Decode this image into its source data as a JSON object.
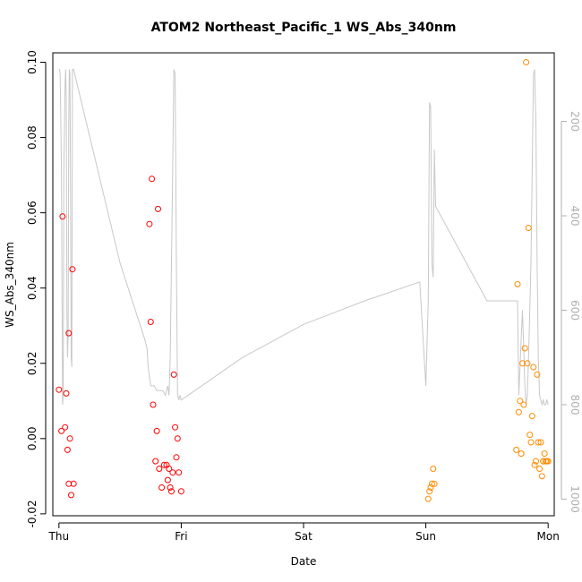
{
  "chart_data": {
    "type": "scatter",
    "title": "ATOM2 Northeast_Pacific_1 WS_Abs_340nm",
    "xlabel": "Date",
    "ylabel": "WS_Abs_340nm",
    "xlim": [
      -0.05,
      4.05
    ],
    "ylim": [
      -0.0205,
      0.1025
    ],
    "x_tick_labels": [
      {
        "x": 0,
        "label": "Thu"
      },
      {
        "x": 1,
        "label": "Fri"
      },
      {
        "x": 2,
        "label": "Sat"
      },
      {
        "x": 3,
        "label": "Sun"
      },
      {
        "x": 4,
        "label": "Mon"
      }
    ],
    "y_ticks": [
      -0.02,
      0.0,
      0.02,
      0.04,
      0.06,
      0.08,
      0.1
    ],
    "y_tick_labels": [
      "-0.02",
      "0.00",
      "0.02",
      "0.04",
      "0.06",
      "0.08",
      "0.10"
    ],
    "right_axis": {
      "ticks": [
        200,
        400,
        600,
        800,
        1000
      ],
      "tick_labels": [
        "200",
        "400",
        "600",
        "800",
        "1000"
      ],
      "lim": [
        55,
        1035
      ],
      "reversed": true,
      "color": "#b0b0b0"
    },
    "series": [
      {
        "name": "WS_Abs_340nm (Thu-Fri)",
        "color": "#ff0000",
        "x": [
          0.0,
          0.02,
          0.03,
          0.05,
          0.06,
          0.07,
          0.08,
          0.08,
          0.09,
          0.1,
          0.11,
          0.12,
          0.74,
          0.75,
          0.76,
          0.77,
          0.79,
          0.8,
          0.81,
          0.82,
          0.84,
          0.86,
          0.88,
          0.89,
          0.9,
          0.91,
          0.92,
          0.93,
          0.94,
          0.95,
          0.96,
          0.97,
          1.0,
          0.98
        ],
        "y": [
          0.013,
          0.002,
          0.059,
          0.003,
          0.012,
          -0.003,
          0.028,
          -0.012,
          0.0,
          -0.015,
          0.045,
          -0.012,
          0.057,
          0.031,
          0.069,
          0.009,
          -0.006,
          0.002,
          0.061,
          -0.008,
          -0.013,
          -0.007,
          -0.007,
          -0.011,
          -0.008,
          -0.013,
          -0.014,
          -0.009,
          0.017,
          0.003,
          -0.005,
          0.0,
          -0.014,
          -0.009
        ]
      },
      {
        "name": "WS_Abs_340nm (Sun-Mon)",
        "color": "#ff8c00",
        "x": [
          3.02,
          3.03,
          3.04,
          3.05,
          3.06,
          3.07,
          3.74,
          3.75,
          3.76,
          3.77,
          3.78,
          3.79,
          3.8,
          3.81,
          3.82,
          3.83,
          3.84,
          3.85,
          3.86,
          3.87,
          3.88,
          3.89,
          3.9,
          3.91,
          3.92,
          3.93,
          3.94,
          3.95,
          3.96,
          3.97,
          3.98,
          3.99,
          4.0,
          3.96
        ],
        "y": [
          -0.016,
          -0.014,
          -0.013,
          -0.012,
          -0.008,
          -0.012,
          -0.003,
          0.041,
          0.007,
          0.01,
          -0.004,
          0.02,
          0.009,
          0.024,
          0.1,
          0.02,
          0.056,
          0.001,
          -0.001,
          0.006,
          0.019,
          -0.007,
          -0.006,
          0.017,
          -0.001,
          -0.008,
          -0.001,
          -0.01,
          -0.006,
          -0.004,
          -0.006,
          -0.006,
          -0.006,
          -0.006
        ]
      }
    ],
    "line_series": [
      {
        "name": "right-axis trace",
        "color": "#c8c8c8",
        "axis": "right",
        "x": [
          0.0,
          0.005,
          0.01,
          0.02,
          0.03,
          0.035,
          0.04,
          0.05,
          0.055,
          0.06,
          0.065,
          0.07,
          0.075,
          0.08,
          0.085,
          0.09,
          0.095,
          0.1,
          0.105,
          0.11,
          0.12,
          0.5,
          0.7,
          0.72,
          0.73,
          0.74,
          0.75,
          0.76,
          0.78,
          0.8,
          0.82,
          0.85,
          0.87,
          0.88,
          0.89,
          0.9,
          0.91,
          0.92,
          0.93,
          0.94,
          0.95,
          0.96,
          0.97,
          0.98,
          0.99,
          1.0,
          1.5,
          2.0,
          2.5,
          2.95,
          3.0,
          3.02,
          3.03,
          3.04,
          3.05,
          3.06,
          3.07,
          3.08,
          3.5,
          3.75,
          3.76,
          3.77,
          3.78,
          3.79,
          3.8,
          3.81,
          3.82,
          3.83,
          3.84,
          3.85,
          3.86,
          3.87,
          3.88,
          3.89,
          3.9,
          3.91,
          3.92,
          3.93,
          3.94,
          3.95,
          3.96,
          3.97,
          3.98,
          3.99,
          4.0
        ],
        "y": [
          90,
          90,
          100,
          300,
          800,
          780,
          300,
          120,
          90,
          150,
          600,
          700,
          650,
          200,
          90,
          100,
          350,
          700,
          720,
          90,
          90,
          500,
          660,
          680,
          720,
          740,
          760,
          760,
          760,
          770,
          770,
          770,
          780,
          770,
          760,
          780,
          700,
          500,
          300,
          90,
          100,
          500,
          780,
          790,
          780,
          790,
          700,
          630,
          580,
          540,
          760,
          580,
          160,
          170,
          500,
          530,
          260,
          380,
          580,
          580,
          780,
          720,
          660,
          600,
          680,
          760,
          800,
          780,
          700,
          600,
          500,
          300,
          100,
          90,
          200,
          500,
          700,
          780,
          790,
          800,
          790,
          800,
          800,
          790,
          800
        ]
      }
    ]
  }
}
